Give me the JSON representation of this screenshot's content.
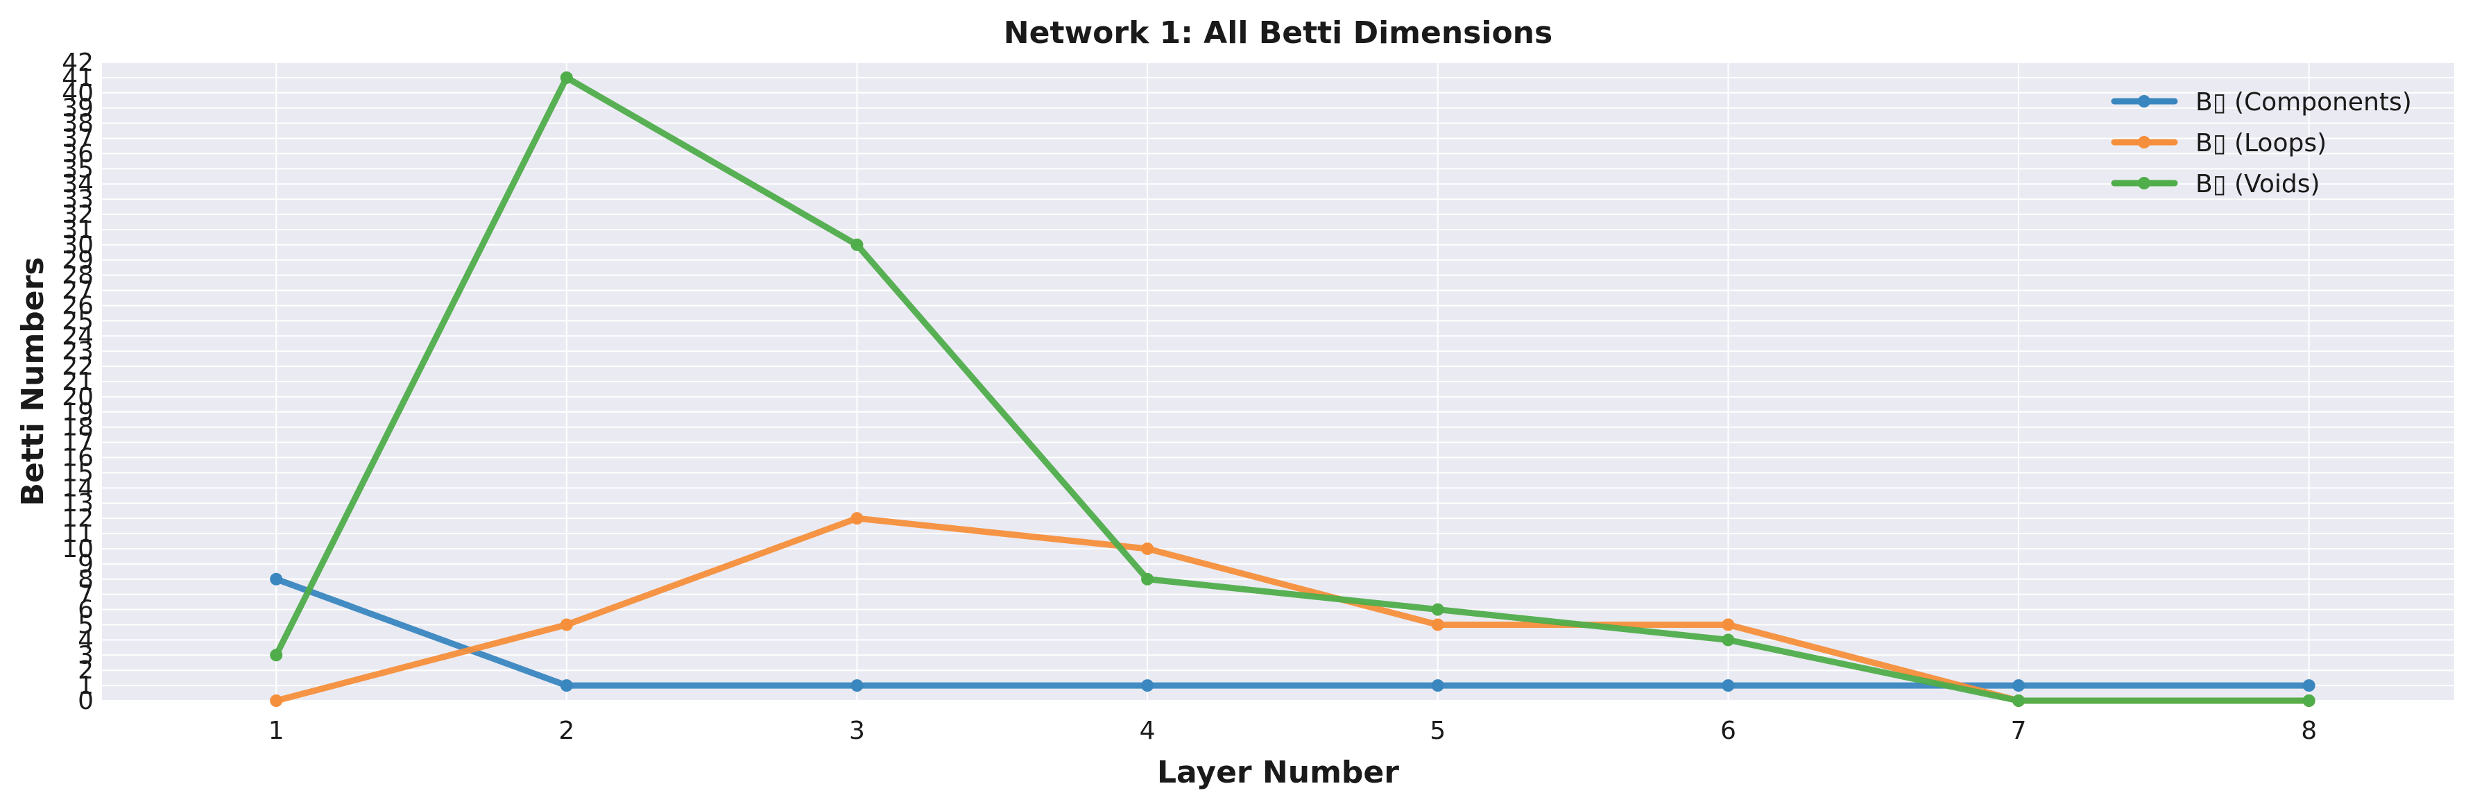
{
  "chart_data": {
    "type": "line",
    "title": "Network 1: All Betti Dimensions",
    "xlabel": "Layer Number",
    "ylabel": "Betti Numbers",
    "x": [
      1,
      2,
      3,
      4,
      5,
      6,
      7,
      8
    ],
    "xlim": [
      0.4,
      8.5
    ],
    "ylim": [
      0,
      42
    ],
    "y_ticks": [
      0,
      1,
      2,
      3,
      4,
      5,
      6,
      7,
      8,
      9,
      10,
      11,
      12,
      13,
      14,
      15,
      16,
      17,
      18,
      19,
      20,
      21,
      22,
      23,
      24,
      25,
      26,
      27,
      28,
      29,
      30,
      31,
      32,
      33,
      34,
      35,
      36,
      37,
      38,
      39,
      40,
      41,
      42
    ],
    "grid": true,
    "legend_position": "top-right",
    "series": [
      {
        "name": "B▯ (Components)",
        "color": "#3a87c0",
        "values": [
          8,
          1,
          1,
          1,
          1,
          1,
          1,
          1
        ]
      },
      {
        "name": "B▯ (Loops)",
        "color": "#f58f3b",
        "values": [
          0,
          5,
          12,
          10,
          5,
          5,
          0,
          0
        ]
      },
      {
        "name": "B▯ (Voids)",
        "color": "#4fad4a",
        "values": [
          3,
          41,
          30,
          8,
          6,
          4,
          0,
          0
        ]
      }
    ]
  }
}
